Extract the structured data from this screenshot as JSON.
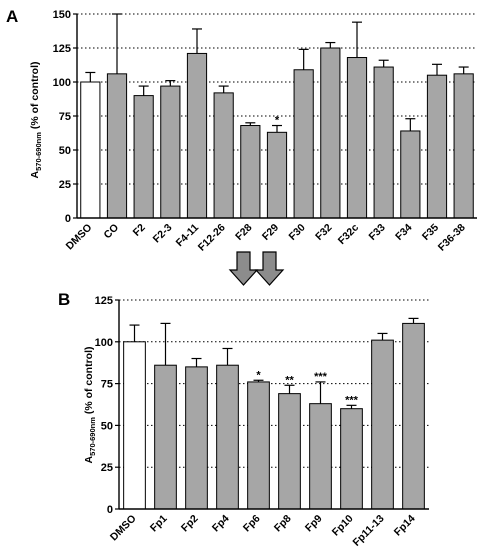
{
  "colors": {
    "control_bar": "#ffffff",
    "treated_bar": "#a6a6a6",
    "outline": "#000000",
    "grid": "#000000",
    "arrow_fill": "#8c8c8c"
  },
  "arrow_icon": "down-arrow-icon",
  "chart_data": [
    {
      "panel": "A",
      "type": "bar",
      "ylabel_main": "A",
      "ylabel_sub": "570-690nm",
      "ylabel_rest": " (% of control)",
      "ylim": [
        0,
        150
      ],
      "yticks": [
        0,
        25,
        50,
        75,
        100,
        125,
        150
      ],
      "grid": "horizontal dotted at 25-unit ticks above 0",
      "categories": [
        "DMSO",
        "CO",
        "F2",
        "F2-3",
        "F4-11",
        "F12-26",
        "F28",
        "F29",
        "F30",
        "F32",
        "F32c",
        "F33",
        "F34",
        "F35",
        "F36-38"
      ],
      "values": [
        100,
        106,
        90,
        97,
        121,
        92,
        68,
        63,
        109,
        125,
        118,
        111,
        64,
        105,
        106
      ],
      "errors": [
        7,
        44,
        7,
        4,
        18,
        5,
        2,
        5,
        15,
        4,
        26,
        5,
        9,
        8,
        5
      ],
      "significance": [
        "",
        "",
        "",
        "",
        "",
        "",
        "",
        "*",
        "",
        "",
        "",
        "",
        "",
        "",
        ""
      ],
      "control_index": 0
    },
    {
      "panel": "B",
      "type": "bar",
      "ylabel_main": "A",
      "ylabel_sub": "570-690nm",
      "ylabel_rest": " (% of control)",
      "ylim": [
        0,
        125
      ],
      "yticks": [
        0,
        25,
        50,
        75,
        100,
        125
      ],
      "grid": "horizontal dotted at 25-unit ticks above 0",
      "categories": [
        "DMSO",
        "Fp1",
        "Fp2",
        "Fp4",
        "Fp6",
        "Fp8",
        "Fp9",
        "Fp10",
        "Fp11-13",
        "Fp14"
      ],
      "values": [
        100,
        86,
        85,
        86,
        76,
        69,
        63,
        60,
        101,
        111
      ],
      "errors": [
        10,
        25,
        5,
        10,
        1,
        5,
        13,
        2,
        4,
        3
      ],
      "significance": [
        "",
        "",
        "",
        "",
        "*",
        "**",
        "***",
        "***",
        "",
        ""
      ],
      "control_index": 0
    }
  ]
}
